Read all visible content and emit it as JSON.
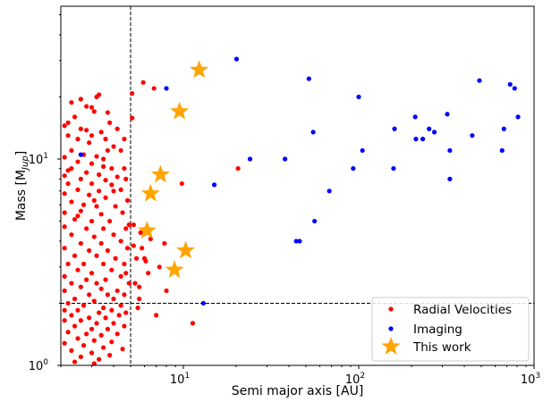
{
  "chart_data": {
    "type": "scatter",
    "xlabel": "Semi major axis [AU]",
    "ylabel": "Mass [M",
    "ylabel_sub": "Jup",
    "ylabel_close": "]",
    "xscale": "log",
    "yscale": "log",
    "xlim": [
      2,
      1000
    ],
    "ylim": [
      1,
      55
    ],
    "x_ticks": [
      {
        "value": 10,
        "base": "10",
        "exp": "1"
      },
      {
        "value": 100,
        "base": "10",
        "exp": "2"
      },
      {
        "value": 1000,
        "base": "10",
        "exp": "3"
      }
    ],
    "y_ticks": [
      {
        "value": 1,
        "base": "10",
        "exp": "0"
      },
      {
        "value": 10,
        "base": "10",
        "exp": "1"
      }
    ],
    "reference_lines": {
      "x": 5,
      "y": 2
    },
    "legend": {
      "position": "lower-right"
    },
    "colors": {
      "rv": "#ff0000",
      "imaging": "#0000ff",
      "this_work": "#ffa500"
    },
    "series": [
      {
        "name": "Radial Velocities",
        "marker": "circle",
        "points": [
          [
            2.6,
            19.5
          ],
          [
            3.2,
            20
          ],
          [
            3.3,
            20.5
          ],
          [
            2.8,
            18
          ],
          [
            3.0,
            17.8
          ],
          [
            3.1,
            17
          ],
          [
            2.2,
            15
          ],
          [
            2.4,
            16
          ],
          [
            2.1,
            14.5
          ],
          [
            2.6,
            14
          ],
          [
            3.4,
            13.5
          ],
          [
            3.8,
            15
          ],
          [
            4.2,
            14
          ],
          [
            3.0,
            13
          ],
          [
            2.5,
            12.5
          ],
          [
            3.6,
            12.5
          ],
          [
            4.6,
            12.5
          ],
          [
            2.2,
            13
          ],
          [
            2.9,
            12
          ],
          [
            4.0,
            11.5
          ],
          [
            2.3,
            11
          ],
          [
            2.7,
            10.5
          ],
          [
            3.2,
            10.3
          ],
          [
            3.7,
            11
          ],
          [
            4.4,
            11
          ],
          [
            2.1,
            10.2
          ],
          [
            2.5,
            9.7
          ],
          [
            3.0,
            9.5
          ],
          [
            3.5,
            9.2
          ],
          [
            2.3,
            9
          ],
          [
            3.9,
            9
          ],
          [
            4.6,
            9
          ],
          [
            2.8,
            8.6
          ],
          [
            3.3,
            8.4
          ],
          [
            4.2,
            8.2
          ],
          [
            2.1,
            8.3
          ],
          [
            2.6,
            8
          ],
          [
            3.6,
            7.9
          ],
          [
            4.7,
            8
          ],
          [
            2.2,
            7.6
          ],
          [
            3.0,
            7.6
          ],
          [
            3.9,
            7.5
          ],
          [
            2.5,
            7.1
          ],
          [
            3.3,
            7
          ],
          [
            4.4,
            7.1
          ],
          [
            2.1,
            6.8
          ],
          [
            2.9,
            6.7
          ],
          [
            3.6,
            6.5
          ],
          [
            4.8,
            6.3
          ],
          [
            2.3,
            6.2
          ],
          [
            2.7,
            6
          ],
          [
            3.2,
            5.9
          ],
          [
            4.1,
            5.9
          ],
          [
            2.1,
            5.5
          ],
          [
            2.6,
            5.6
          ],
          [
            3.4,
            5.4
          ],
          [
            4.5,
            5.5
          ],
          [
            2.4,
            5.1
          ],
          [
            3.0,
            5
          ],
          [
            3.8,
            5
          ],
          [
            2.1,
            4.7
          ],
          [
            2.8,
            4.6
          ],
          [
            3.5,
            4.6
          ],
          [
            4.7,
            4.6
          ],
          [
            2.3,
            4.3
          ],
          [
            3.1,
            4.2
          ],
          [
            4.0,
            4.3
          ],
          [
            2.6,
            3.9
          ],
          [
            3.4,
            3.9
          ],
          [
            4.4,
            4
          ],
          [
            2.1,
            3.7
          ],
          [
            2.9,
            3.6
          ],
          [
            3.7,
            3.6
          ],
          [
            4.8,
            3.7
          ],
          [
            2.4,
            3.4
          ],
          [
            3.2,
            3.4
          ],
          [
            4.1,
            3.3
          ],
          [
            2.2,
            3.1
          ],
          [
            2.7,
            3.1
          ],
          [
            3.5,
            3.1
          ],
          [
            4.6,
            3.1
          ],
          [
            2.5,
            2.9
          ],
          [
            3.0,
            2.8
          ],
          [
            3.9,
            2.9
          ],
          [
            2.1,
            2.7
          ],
          [
            2.8,
            2.6
          ],
          [
            3.6,
            2.6
          ],
          [
            4.4,
            2.7
          ],
          [
            2.3,
            2.5
          ],
          [
            3.2,
            2.5
          ],
          [
            4.9,
            2.5
          ],
          [
            2.6,
            2.4
          ],
          [
            3.4,
            2.35
          ],
          [
            4.2,
            2.3
          ],
          [
            2.1,
            2.3
          ],
          [
            2.9,
            2.2
          ],
          [
            3.7,
            2.2
          ],
          [
            4.6,
            2.2
          ],
          [
            2.4,
            2.1
          ],
          [
            3.1,
            2.05
          ],
          [
            4.0,
            2.1
          ],
          [
            2.2,
            2.0
          ],
          [
            2.7,
            1.95
          ],
          [
            3.5,
            1.9
          ],
          [
            4.4,
            1.95
          ],
          [
            2.1,
            1.85
          ],
          [
            2.5,
            1.85
          ],
          [
            3.3,
            1.8
          ],
          [
            3.9,
            1.85
          ],
          [
            4.7,
            1.8
          ],
          [
            2.3,
            1.75
          ],
          [
            2.9,
            1.7
          ],
          [
            3.6,
            1.7
          ],
          [
            4.3,
            1.75
          ],
          [
            2.1,
            1.65
          ],
          [
            2.6,
            1.65
          ],
          [
            3.2,
            1.6
          ],
          [
            4.0,
            1.6
          ],
          [
            2.4,
            1.55
          ],
          [
            3.0,
            1.5
          ],
          [
            3.7,
            1.5
          ],
          [
            4.6,
            1.55
          ],
          [
            2.2,
            1.45
          ],
          [
            2.8,
            1.42
          ],
          [
            3.4,
            1.4
          ],
          [
            4.2,
            1.42
          ],
          [
            2.5,
            1.35
          ],
          [
            3.1,
            1.32
          ],
          [
            3.9,
            1.3
          ],
          [
            2.1,
            1.28
          ],
          [
            2.7,
            1.25
          ],
          [
            3.5,
            1.22
          ],
          [
            4.5,
            1.2
          ],
          [
            2.3,
            1.18
          ],
          [
            3.0,
            1.15
          ],
          [
            3.8,
            1.12
          ],
          [
            2.6,
            1.1
          ],
          [
            3.3,
            1.07
          ],
          [
            2.4,
            1.04
          ],
          [
            3.1,
            1.02
          ],
          [
            2.5,
            5.3
          ],
          [
            3.1,
            6.3
          ],
          [
            4.0,
            7.0
          ],
          [
            2.2,
            8.8
          ],
          [
            3.5,
            10.0
          ],
          [
            4.7,
            2.8
          ],
          [
            4.9,
            4.8
          ],
          [
            2.8,
            13.8
          ],
          [
            3.7,
            16.8
          ],
          [
            2.3,
            18.8
          ],
          [
            5.1,
            20.8
          ],
          [
            5.1,
            15.8
          ],
          [
            5.2,
            4.8
          ],
          [
            5.2,
            3.8
          ],
          [
            5.3,
            2.5
          ],
          [
            5.4,
            3.3
          ],
          [
            5.5,
            1.9
          ],
          [
            5.8,
            3.7
          ],
          [
            6.0,
            3.3
          ],
          [
            6.1,
            3.2
          ],
          [
            5.6,
            2.4
          ],
          [
            7.8,
            3.9
          ],
          [
            9.8,
            7.6
          ],
          [
            11.3,
            1.6
          ],
          [
            20.5,
            9.0
          ],
          [
            5.6,
            2.1
          ],
          [
            6.3,
            2.8
          ],
          [
            7.0,
            1.75
          ],
          [
            8.0,
            2.3
          ],
          [
            5.7,
            4.4
          ],
          [
            6.5,
            4.1
          ],
          [
            7.3,
            3.0
          ],
          [
            5.9,
            23.5
          ],
          [
            6.8,
            22.0
          ]
        ]
      },
      {
        "name": "Imaging",
        "marker": "circle",
        "points": [
          [
            20.1,
            30.5
          ],
          [
            52,
            24.5
          ],
          [
            8,
            22
          ],
          [
            100,
            20
          ],
          [
            488,
            24
          ],
          [
            730,
            23
          ],
          [
            775,
            22
          ],
          [
            810,
            16
          ],
          [
            210,
            16
          ],
          [
            232,
            12.5
          ],
          [
            444,
            13
          ],
          [
            160,
            14
          ],
          [
            252,
            14
          ],
          [
            212,
            12.5
          ],
          [
            270,
            13.5
          ],
          [
            320,
            16.5
          ],
          [
            673,
            14
          ],
          [
            55,
            13.5
          ],
          [
            331,
            11
          ],
          [
            105,
            11
          ],
          [
            93,
            9
          ],
          [
            158,
            9
          ],
          [
            657,
            11
          ],
          [
            38,
            10
          ],
          [
            24,
            10
          ],
          [
            331,
            8
          ],
          [
            15,
            7.5
          ],
          [
            68,
            7
          ],
          [
            56,
            5
          ],
          [
            44,
            4
          ],
          [
            46,
            4
          ],
          [
            13,
            2
          ],
          [
            2.6,
            10.5
          ]
        ]
      },
      {
        "name": "This work",
        "marker": "star",
        "points": [
          [
            12.3,
            27
          ],
          [
            9.5,
            17
          ],
          [
            7.4,
            8.4
          ],
          [
            6.5,
            6.8
          ],
          [
            6.2,
            4.5
          ],
          [
            10.3,
            3.6
          ],
          [
            8.9,
            2.9
          ]
        ]
      }
    ]
  }
}
